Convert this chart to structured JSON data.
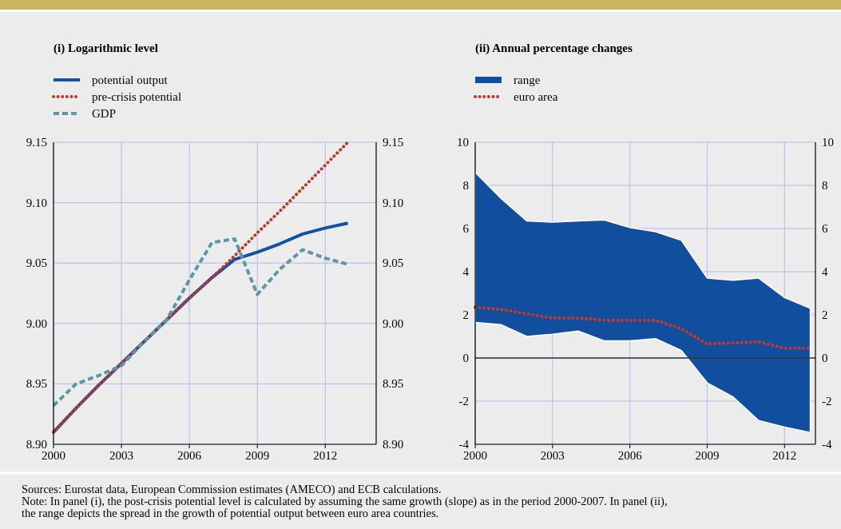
{
  "chart_data": [
    {
      "type": "line",
      "title": "(i) Logarithmic level",
      "x": [
        2000,
        2001,
        2002,
        2003,
        2004,
        2005,
        2006,
        2007,
        2008,
        2009,
        2010,
        2011,
        2012,
        2013
      ],
      "xlim": [
        2000,
        2014.25
      ],
      "xticks": [
        2000,
        2003,
        2006,
        2009,
        2012
      ],
      "ylim": [
        8.9,
        9.15
      ],
      "yticks": [
        {
          "value": 8.9,
          "label": "8.90"
        },
        {
          "value": 8.95,
          "label": "8.95"
        },
        {
          "value": 9.0,
          "label": "9.00"
        },
        {
          "value": 9.05,
          "label": "9.05"
        },
        {
          "value": 9.1,
          "label": "9.10"
        },
        {
          "value": 9.15,
          "label": "9.15"
        }
      ],
      "y2lim": [
        8.9,
        9.15
      ],
      "y2ticks": [
        {
          "value": 8.9,
          "label": "8.90"
        },
        {
          "value": 8.95,
          "label": "8.95"
        },
        {
          "value": 9.0,
          "label": "9.00"
        },
        {
          "value": 9.05,
          "label": "9.05"
        },
        {
          "value": 9.1,
          "label": "9.10"
        },
        {
          "value": 9.15,
          "label": "9.15"
        }
      ],
      "grid": true,
      "legend": "top left",
      "series": [
        {
          "name": "potential output",
          "color": "#1550a3",
          "line_style": "solid",
          "values": [
            8.91,
            8.93,
            8.949,
            8.967,
            8.985,
            9.003,
            9.021,
            9.038,
            9.053,
            9.059,
            9.066,
            9.074,
            9.079,
            9.083
          ]
        },
        {
          "name": "pre-crisis potential",
          "color": "#b93a2e",
          "line_style": "dotted",
          "values": [
            8.91,
            8.93,
            8.949,
            8.967,
            8.985,
            9.003,
            9.021,
            9.038,
            9.056,
            9.075,
            9.093,
            9.112,
            9.131,
            9.15
          ]
        },
        {
          "name": "GDP",
          "color": "#5b97a6",
          "line_style": "dashed",
          "values": [
            8.932,
            8.95,
            8.957,
            8.965,
            8.985,
            9.003,
            9.036,
            9.067,
            9.07,
            9.024,
            9.045,
            9.061,
            9.054,
            9.049
          ]
        }
      ],
      "annotations": [
        "Sources: Eurostat data, European Commission estimates (AMECO) and ECB calculations.",
        "Note: In panel (i), the post-crisis potential level is calculated by assuming the same growth (slope) as in the period 2000-2007. In panel (ii),",
        "the range depicts the spread in the growth of potential output between euro area countries."
      ]
    },
    {
      "type": "line",
      "title": "(ii) Annual percentage changes",
      "x": [
        2000,
        2001,
        2002,
        2003,
        2004,
        2005,
        2006,
        2007,
        2008,
        2009,
        2010,
        2011,
        2012,
        2013
      ],
      "xlim": [
        2000,
        2013.2
      ],
      "xticks": [
        2000,
        2003,
        2006,
        2009,
        2012
      ],
      "ylim": [
        -4,
        10
      ],
      "yticks": [
        -4,
        -2,
        0,
        2,
        4,
        6,
        8,
        10
      ],
      "y2lim": [
        -4,
        10
      ],
      "y2ticks": [
        -4,
        -2,
        0,
        2,
        4,
        6,
        8,
        10
      ],
      "grid": true,
      "legend": "top left",
      "ref_lines": [
        {
          "axis": "y",
          "value": 0,
          "color": "#333333"
        }
      ],
      "series": [
        {
          "name": "range",
          "type": "area",
          "color": "#124e9e",
          "values": [
            null,
            null,
            null,
            null,
            null,
            null,
            null,
            null,
            null,
            null,
            null,
            null,
            null,
            null
          ],
          "upper": [
            8.6,
            7.4,
            6.35,
            6.3,
            6.35,
            6.4,
            6.05,
            5.85,
            5.45,
            3.7,
            3.6,
            3.7,
            2.8,
            2.3
          ],
          "lower": [
            1.65,
            1.55,
            1.0,
            1.1,
            1.25,
            0.8,
            0.8,
            0.9,
            0.35,
            -1.15,
            -1.8,
            -2.9,
            -3.2,
            -3.45
          ]
        },
        {
          "name": "euro area",
          "type": "line",
          "color": "#c0392b",
          "line_style": "dotted",
          "values": [
            2.35,
            2.25,
            2.05,
            1.85,
            1.85,
            1.75,
            1.75,
            1.75,
            1.35,
            0.65,
            0.7,
            0.75,
            0.45,
            0.45
          ]
        }
      ]
    }
  ]
}
